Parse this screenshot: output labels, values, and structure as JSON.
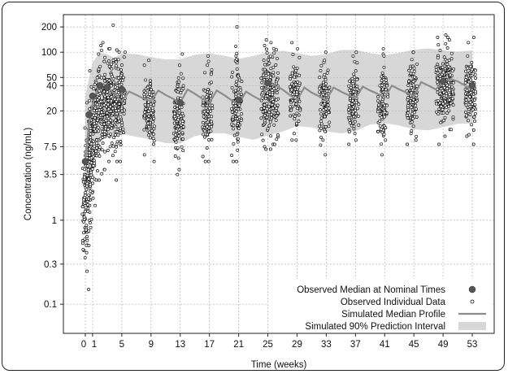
{
  "chart_data": {
    "type": "scatter",
    "title": "",
    "xlabel": "Time (weeks)",
    "ylabel": "Concentration (ng/mL)",
    "x_scale": "linear",
    "y_scale": "log",
    "xlim": [
      -3,
      56
    ],
    "ylim": [
      0.045,
      280
    ],
    "x_ticks": [
      0,
      1,
      5,
      9,
      13,
      17,
      21,
      25,
      29,
      33,
      37,
      41,
      45,
      49,
      53
    ],
    "x_tick_labels": [
      "0",
      "1",
      "5",
      "9",
      "13",
      "17",
      "21",
      "25",
      "29",
      "33",
      "37",
      "41",
      "45",
      "49",
      "53"
    ],
    "y_ticks": [
      0.1,
      0.3,
      1,
      3.5,
      7.5,
      20,
      40,
      50,
      100,
      200
    ],
    "y_tick_labels": [
      "0.1",
      "0.3",
      "1",
      "3.5",
      "7.5",
      "20",
      "40",
      "50",
      "100",
      "200"
    ],
    "grid": true,
    "legend_position": "bottom-right",
    "legend": [
      {
        "label": "Observed Median at Nominal Times",
        "marker": "filled-circle"
      },
      {
        "label": "Observed Individual Data",
        "marker": "open-circle"
      },
      {
        "label": "Simulated Median Profile",
        "marker": "line"
      },
      {
        "label": "Simulated 90% Prediction Interval",
        "marker": "band"
      }
    ],
    "colors": {
      "median_marker": "#555555",
      "individual_marker": "#111111",
      "median_line": "#8c8c8c",
      "prediction_band": "#d7d7d7",
      "grid": "#b5b5b5"
    },
    "series": [
      {
        "name": "Observed Median at Nominal Times",
        "x": [
          0,
          0.5,
          1,
          2,
          3,
          5,
          13,
          21,
          25,
          49,
          53
        ],
        "y": [
          5,
          18,
          30,
          40,
          38,
          36,
          25,
          27,
          43,
          45,
          40
        ]
      },
      {
        "name": "Simulated Median Profile",
        "x": [
          0,
          0.5,
          1,
          1.5,
          2,
          2.5,
          3,
          4,
          5,
          6,
          7,
          8,
          9,
          10,
          11,
          12,
          13,
          14,
          15,
          16,
          17,
          18,
          19,
          20,
          21,
          22,
          23,
          24,
          25,
          26,
          27,
          28,
          29,
          30,
          31,
          32,
          33,
          34,
          35,
          36,
          37,
          38,
          39,
          40,
          41,
          42,
          43,
          44,
          45,
          46,
          47,
          48,
          49,
          50,
          51,
          52,
          53
        ],
        "y": [
          5,
          14,
          24,
          33,
          40,
          42,
          38,
          32,
          26,
          34,
          31,
          28,
          26,
          35,
          31,
          28,
          25,
          36,
          32,
          28,
          25,
          35,
          31,
          27,
          24,
          34,
          30,
          27,
          42,
          40,
          36,
          31,
          27,
          38,
          33,
          30,
          27,
          38,
          34,
          31,
          28,
          39,
          35,
          32,
          29,
          40,
          36,
          33,
          30,
          44,
          40,
          36,
          44,
          48,
          45,
          40,
          36
        ]
      },
      {
        "name": "Simulated 90% Prediction Interval",
        "x": [
          0,
          1,
          2,
          3,
          4,
          5,
          7,
          9,
          11,
          13,
          15,
          17,
          19,
          21,
          23,
          25,
          27,
          29,
          31,
          33,
          35,
          37,
          39,
          41,
          43,
          45,
          47,
          49,
          51,
          53
        ],
        "lower": [
          2,
          4,
          9,
          11,
          10,
          10,
          9,
          9,
          9,
          9,
          10,
          10,
          10,
          10,
          10,
          11,
          11,
          12,
          12,
          12,
          12,
          12,
          13,
          13,
          13,
          13,
          13,
          13,
          13,
          13
        ],
        "upper": [
          30,
          70,
          95,
          100,
          92,
          95,
          88,
          85,
          88,
          88,
          90,
          90,
          90,
          90,
          95,
          95,
          97,
          98,
          98,
          98,
          100,
          100,
          100,
          100,
          100,
          100,
          105,
          110,
          110,
          105
        ]
      }
    ],
    "individual_points": {
      "description_of_distribution": "clusters of observations at each visit",
      "visits": [
        {
          "x": 0,
          "y_low": 0.15,
          "y_high": 8
        },
        {
          "x": 0.3,
          "y_low": 0.5,
          "y_high": 15
        },
        {
          "x": 0.6,
          "y_low": 1,
          "y_high": 25
        },
        {
          "x": 1,
          "y_low": 1.5,
          "y_high": 60
        },
        {
          "x": 1.5,
          "y_low": 3,
          "y_high": 95
        },
        {
          "x": 2,
          "y_low": 3,
          "y_high": 130
        },
        {
          "x": 2.5,
          "y_low": 4,
          "y_high": 120
        },
        {
          "x": 3,
          "y_low": 4,
          "y_high": 110
        },
        {
          "x": 3.5,
          "y_low": 5,
          "y_high": 110
        },
        {
          "x": 4,
          "y_low": 3,
          "y_high": 210
        },
        {
          "x": 4.5,
          "y_low": 5,
          "y_high": 100
        },
        {
          "x": 5,
          "y_low": 5,
          "y_high": 100
        },
        {
          "x": 8.5,
          "y_low": 6,
          "y_high": 70
        },
        {
          "x": 9,
          "y_low": 5,
          "y_high": 80
        },
        {
          "x": 12.5,
          "y_low": 4,
          "y_high": 70
        },
        {
          "x": 13,
          "y_low": 3.5,
          "y_high": 95
        },
        {
          "x": 16.5,
          "y_low": 5,
          "y_high": 70
        },
        {
          "x": 17,
          "y_low": 5,
          "y_high": 90
        },
        {
          "x": 20.5,
          "y_low": 5,
          "y_high": 90
        },
        {
          "x": 21,
          "y_low": 5,
          "y_high": 200
        },
        {
          "x": 24.5,
          "y_low": 7,
          "y_high": 120
        },
        {
          "x": 25,
          "y_low": 7,
          "y_high": 140
        },
        {
          "x": 25.5,
          "y_low": 8,
          "y_high": 130
        },
        {
          "x": 26,
          "y_low": 8,
          "y_high": 110
        },
        {
          "x": 28.5,
          "y_low": 9,
          "y_high": 130
        },
        {
          "x": 29,
          "y_low": 9,
          "y_high": 110
        },
        {
          "x": 32.5,
          "y_low": 6,
          "y_high": 100
        },
        {
          "x": 33,
          "y_low": 9,
          "y_high": 80
        },
        {
          "x": 36.5,
          "y_low": 8,
          "y_high": 90
        },
        {
          "x": 37,
          "y_low": 9,
          "y_high": 100
        },
        {
          "x": 40.5,
          "y_low": 6,
          "y_high": 110
        },
        {
          "x": 41,
          "y_low": 9,
          "y_high": 90
        },
        {
          "x": 44.5,
          "y_low": 8,
          "y_high": 100
        },
        {
          "x": 45,
          "y_low": 9,
          "y_high": 100
        },
        {
          "x": 48.5,
          "y_low": 8,
          "y_high": 150
        },
        {
          "x": 49,
          "y_low": 10,
          "y_high": 160
        },
        {
          "x": 49.5,
          "y_low": 12,
          "y_high": 150
        },
        {
          "x": 50,
          "y_low": 12,
          "y_high": 140
        },
        {
          "x": 52.5,
          "y_low": 10,
          "y_high": 130
        },
        {
          "x": 53,
          "y_low": 8,
          "y_high": 150
        }
      ]
    }
  }
}
